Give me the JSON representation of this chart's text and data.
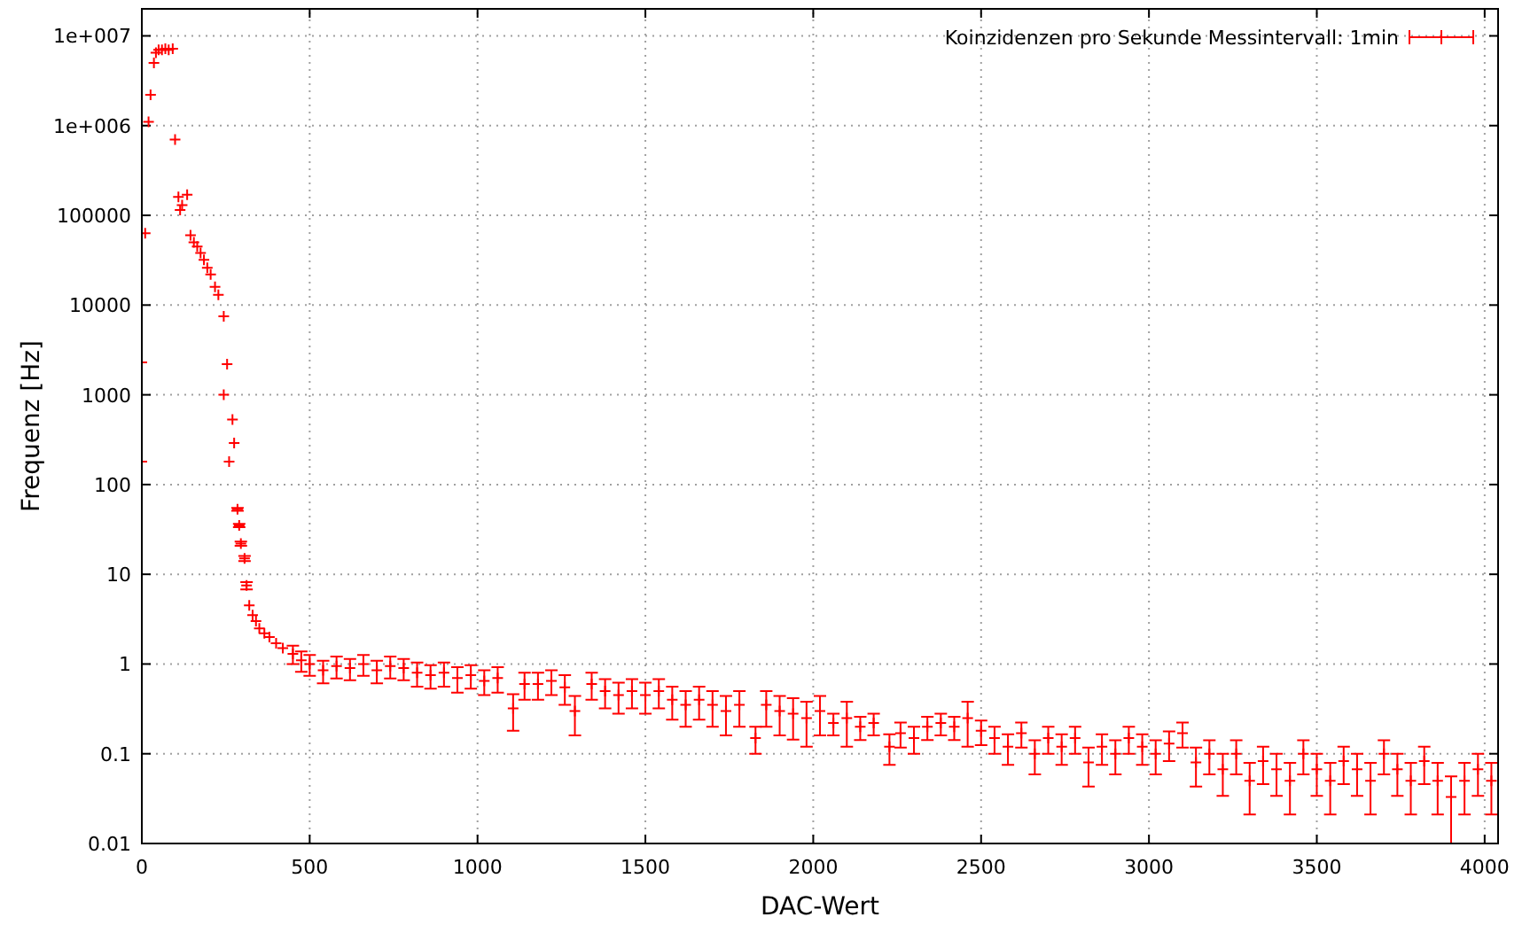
{
  "chart_data": {
    "type": "scatter",
    "xlabel": "DAC-Wert",
    "ylabel": "Frequenz [Hz]",
    "xlim": [
      0,
      4040
    ],
    "xticks": [
      0,
      500,
      1000,
      1500,
      2000,
      2500,
      3000,
      3500,
      4000
    ],
    "ylim": [
      0.01,
      20000000
    ],
    "log": "y",
    "yticks": [
      {
        "value": 10000000,
        "label": "1e+007"
      },
      {
        "value": 1000000,
        "label": "1e+006"
      },
      100000,
      10000,
      1000,
      100,
      10,
      1,
      0.1,
      0.01
    ],
    "grid": true,
    "legend": "top right",
    "marker": "cross",
    "series": [
      {
        "name": "Koinzidenzen pro Sekunde Messintervall: 1min",
        "color": "#ff0000",
        "x": [
          0,
          0,
          10,
          20,
          26,
          36,
          42,
          50,
          60,
          70,
          80,
          92,
          99,
          109,
          114,
          120,
          135,
          145,
          155,
          165,
          175,
          185,
          195,
          205,
          218,
          228,
          244,
          244,
          254,
          260,
          270,
          275,
          285,
          290,
          295,
          306,
          312,
          320,
          330,
          340,
          350,
          365,
          380,
          400,
          420,
          450,
          475,
          500,
          540,
          580,
          620,
          660,
          700,
          740,
          780,
          820,
          860,
          900,
          940,
          980,
          1020,
          1060,
          1106,
          1140,
          1180,
          1220,
          1260,
          1290,
          1340,
          1380,
          1420,
          1460,
          1500,
          1540,
          1580,
          1620,
          1660,
          1700,
          1740,
          1780,
          1828,
          1860,
          1900,
          1940,
          1980,
          2020,
          2060,
          2100,
          2140,
          2180,
          2227,
          2260,
          2300,
          2340,
          2380,
          2420,
          2460,
          2500,
          2540,
          2580,
          2620,
          2660,
          2700,
          2740,
          2780,
          2820,
          2860,
          2900,
          2940,
          2980,
          3020,
          3060,
          3100,
          3140,
          3180,
          3220,
          3260,
          3300,
          3340,
          3380,
          3420,
          3460,
          3500,
          3540,
          3580,
          3620,
          3660,
          3700,
          3740,
          3780,
          3820,
          3860,
          3900,
          3940,
          3980,
          4020
        ],
        "values": [
          180,
          2300,
          63000,
          1100000,
          2200000,
          5000000,
          6500000,
          7000000,
          7000000,
          7200000,
          7000000,
          7200000,
          700000,
          160000,
          115000,
          130000,
          170000,
          60000,
          50000,
          45000,
          38000,
          32000,
          26000,
          22000,
          16000,
          13000,
          7500,
          1000,
          2200,
          180,
          530,
          290,
          53,
          35,
          22,
          15,
          7.5,
          4.5,
          3.5,
          3,
          2.5,
          2.2,
          2,
          1.7,
          1.5,
          1.3,
          1.1,
          1.0,
          0.85,
          0.95,
          0.9,
          1.0,
          0.85,
          0.95,
          0.9,
          0.8,
          0.75,
          0.8,
          0.7,
          0.75,
          0.65,
          0.7,
          0.32,
          0.6,
          0.6,
          0.65,
          0.55,
          0.3,
          0.6,
          0.5,
          0.45,
          0.5,
          0.45,
          0.5,
          0.4,
          0.35,
          0.4,
          0.35,
          0.3,
          0.35,
          0.15,
          0.35,
          0.3,
          0.28,
          0.25,
          0.3,
          0.22,
          0.25,
          0.2,
          0.22,
          0.12,
          0.17,
          0.15,
          0.2,
          0.22,
          0.2,
          0.25,
          0.18,
          0.15,
          0.12,
          0.17,
          0.1,
          0.15,
          0.12,
          0.15,
          0.08,
          0.12,
          0.1,
          0.15,
          0.12,
          0.1,
          0.13,
          0.17,
          0.08,
          0.1,
          0.067,
          0.1,
          0.05,
          0.083,
          0.067,
          0.05,
          0.1,
          0.067,
          0.05,
          0.083,
          0.067,
          0.05,
          0.1,
          0.067,
          0.05,
          0.083,
          0.05,
          0.033,
          0.05,
          0.067,
          0.05
        ],
        "errors": [
          null,
          null,
          null,
          null,
          null,
          null,
          null,
          null,
          null,
          null,
          null,
          null,
          null,
          null,
          null,
          null,
          null,
          null,
          null,
          null,
          null,
          null,
          null,
          null,
          null,
          null,
          null,
          null,
          null,
          null,
          null,
          null,
          1.9,
          1.5,
          1.2,
          1,
          0.7,
          null,
          null,
          null,
          null,
          null,
          null,
          null,
          null,
          0.3,
          0.28,
          0.26,
          0.24,
          0.26,
          0.24,
          0.26,
          0.24,
          0.26,
          0.24,
          0.24,
          0.22,
          0.24,
          0.22,
          0.22,
          0.2,
          0.22,
          0.14,
          0.2,
          0.2,
          0.2,
          0.2,
          0.14,
          0.2,
          0.18,
          0.17,
          0.18,
          0.17,
          0.18,
          0.16,
          0.15,
          0.16,
          0.15,
          0.14,
          0.15,
          0.05,
          0.15,
          0.14,
          0.136,
          0.13,
          0.14,
          0.06,
          0.13,
          0.058,
          0.06,
          0.045,
          0.053,
          0.05,
          0.058,
          0.06,
          0.058,
          0.13,
          0.055,
          0.05,
          0.045,
          0.053,
          0.041,
          0.05,
          0.045,
          0.05,
          0.037,
          0.045,
          0.041,
          0.05,
          0.045,
          0.041,
          0.047,
          0.053,
          0.037,
          0.041,
          0.033,
          0.041,
          0.029,
          0.037,
          0.033,
          0.029,
          0.041,
          0.033,
          0.029,
          0.037,
          0.033,
          0.029,
          0.041,
          0.033,
          0.029,
          0.037,
          0.029,
          0.023,
          0.029,
          0.033,
          0.029
        ]
      }
    ]
  }
}
